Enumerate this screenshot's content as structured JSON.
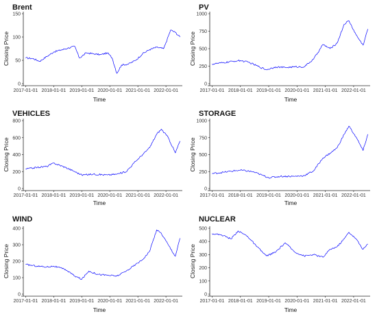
{
  "chart_data": [
    {
      "type": "line",
      "title": "Brent",
      "xlabel": "Time",
      "ylabel": "Closing Price",
      "ylim": [
        0,
        150
      ],
      "yticks": [
        0,
        50,
        100,
        150
      ],
      "xticks": [
        "2017-01-01",
        "2018-01-01",
        "2019-01-01",
        "2020-01-01",
        "2021-01-01",
        "2022-01-01"
      ],
      "xlim": [
        "2016-12",
        "2022-08"
      ],
      "grid": false,
      "color": "#0000ff",
      "series": [
        {
          "x": [
            "2017-01",
            "2017-04",
            "2017-07",
            "2017-10",
            "2018-01",
            "2018-04",
            "2018-07",
            "2018-10",
            "2018-12",
            "2019-03",
            "2019-06",
            "2019-09",
            "2019-12",
            "2020-02",
            "2020-04",
            "2020-06",
            "2020-09",
            "2020-12",
            "2021-03",
            "2021-06",
            "2021-09",
            "2021-12",
            "2022-01",
            "2022-03",
            "2022-05",
            "2022-07"
          ],
          "y": [
            55,
            54,
            48,
            58,
            68,
            72,
            76,
            80,
            55,
            66,
            64,
            62,
            66,
            55,
            22,
            40,
            42,
            50,
            64,
            73,
            78,
            75,
            88,
            115,
            110,
            100
          ]
        }
      ]
    },
    {
      "type": "line",
      "title": "PV",
      "xlabel": "Time",
      "ylabel": "Closing Price",
      "ylim": [
        0,
        1000
      ],
      "yticks": [
        0,
        250,
        500,
        750,
        1000
      ],
      "xticks": [
        "2017-01-01",
        "2018-01-01",
        "2019-01-01",
        "2020-01-01",
        "2021-01-01",
        "2022-01-01"
      ],
      "xlim": [
        "2016-12",
        "2022-08"
      ],
      "grid": false,
      "color": "#0000ff",
      "series": [
        {
          "x": [
            "2017-01",
            "2017-06",
            "2017-10",
            "2018-01",
            "2018-05",
            "2018-09",
            "2018-12",
            "2019-04",
            "2019-08",
            "2019-12",
            "2020-04",
            "2020-08",
            "2020-12",
            "2021-03",
            "2021-06",
            "2021-09",
            "2021-11",
            "2022-02",
            "2022-05",
            "2022-07"
          ],
          "y": [
            280,
            300,
            320,
            330,
            300,
            240,
            200,
            240,
            230,
            240,
            240,
            350,
            560,
            500,
            580,
            850,
            900,
            700,
            550,
            780
          ]
        }
      ]
    },
    {
      "type": "line",
      "title": "VEHICLES",
      "xlabel": "Time",
      "ylabel": "Closing Price",
      "ylim": [
        0,
        800
      ],
      "yticks": [
        0,
        200,
        400,
        600,
        800
      ],
      "xticks": [
        "2017-01-01",
        "2018-01-01",
        "2019-01-01",
        "2020-01-01",
        "2021-01-01",
        "2022-01-01"
      ],
      "xlim": [
        "2016-12",
        "2022-08"
      ],
      "grid": false,
      "color": "#0000ff",
      "series": [
        {
          "x": [
            "2017-01",
            "2017-06",
            "2017-10",
            "2018-01",
            "2018-06",
            "2018-10",
            "2019-01",
            "2019-06",
            "2019-12",
            "2020-04",
            "2020-08",
            "2020-12",
            "2021-03",
            "2021-06",
            "2021-09",
            "2021-11",
            "2022-02",
            "2022-05",
            "2022-07"
          ],
          "y": [
            230,
            250,
            260,
            300,
            250,
            200,
            160,
            170,
            160,
            170,
            200,
            320,
            400,
            480,
            640,
            700,
            600,
            420,
            560
          ]
        }
      ]
    },
    {
      "type": "line",
      "title": "STORAGE",
      "xlabel": "Time",
      "ylabel": "Closing Price",
      "ylim": [
        0,
        1000
      ],
      "yticks": [
        0,
        250,
        500,
        750,
        1000
      ],
      "xticks": [
        "2017-01-01",
        "2018-01-01",
        "2019-01-01",
        "2020-01-01",
        "2021-01-01",
        "2022-01-01"
      ],
      "xlim": [
        "2016-12",
        "2022-08"
      ],
      "grid": false,
      "color": "#0000ff",
      "series": [
        {
          "x": [
            "2017-01",
            "2017-06",
            "2017-10",
            "2018-01",
            "2018-06",
            "2018-10",
            "2019-01",
            "2019-06",
            "2019-12",
            "2020-04",
            "2020-08",
            "2020-12",
            "2021-03",
            "2021-06",
            "2021-09",
            "2021-11",
            "2022-02",
            "2022-05",
            "2022-07"
          ],
          "y": [
            220,
            240,
            260,
            270,
            250,
            200,
            160,
            180,
            180,
            190,
            260,
            450,
            520,
            600,
            800,
            920,
            760,
            560,
            800
          ]
        }
      ]
    },
    {
      "type": "line",
      "title": "WIND",
      "xlabel": "Time",
      "ylabel": "Closing Price",
      "ylim": [
        0,
        400
      ],
      "yticks": [
        0,
        100,
        200,
        300,
        400
      ],
      "xticks": [
        "2017-01-01",
        "2018-01-01",
        "2019-01-01",
        "2020-01-01",
        "2021-01-01",
        "2022-01-01"
      ],
      "xlim": [
        "2016-12",
        "2022-08"
      ],
      "grid": false,
      "color": "#0000ff",
      "series": [
        {
          "x": [
            "2017-01",
            "2017-06",
            "2017-10",
            "2018-01",
            "2018-06",
            "2018-10",
            "2019-01",
            "2019-04",
            "2019-08",
            "2019-12",
            "2020-04",
            "2020-08",
            "2020-12",
            "2021-03",
            "2021-06",
            "2021-09",
            "2021-11",
            "2022-02",
            "2022-05",
            "2022-07"
          ],
          "y": [
            180,
            170,
            165,
            170,
            150,
            110,
            90,
            140,
            120,
            115,
            110,
            140,
            180,
            210,
            260,
            390,
            370,
            300,
            230,
            340
          ]
        }
      ]
    },
    {
      "type": "line",
      "title": "NUCLEAR",
      "xlabel": "Time",
      "ylabel": "Closing Price",
      "ylim": [
        0,
        500
      ],
      "yticks": [
        0,
        100,
        200,
        300,
        400,
        500
      ],
      "xticks": [
        "2017-01-01",
        "2018-01-01",
        "2019-01-01",
        "2020-01-01",
        "2021-01-01",
        "2022-01-01"
      ],
      "xlim": [
        "2016-12",
        "2022-08"
      ],
      "grid": false,
      "color": "#0000ff",
      "series": [
        {
          "x": [
            "2017-01",
            "2017-05",
            "2017-09",
            "2017-12",
            "2018-04",
            "2018-08",
            "2018-12",
            "2019-04",
            "2019-08",
            "2019-12",
            "2020-04",
            "2020-08",
            "2020-12",
            "2021-03",
            "2021-06",
            "2021-09",
            "2021-11",
            "2022-02",
            "2022-05",
            "2022-07"
          ],
          "y": [
            460,
            450,
            420,
            480,
            440,
            360,
            290,
            320,
            390,
            320,
            290,
            300,
            280,
            340,
            360,
            420,
            470,
            420,
            340,
            380
          ]
        }
      ]
    }
  ]
}
